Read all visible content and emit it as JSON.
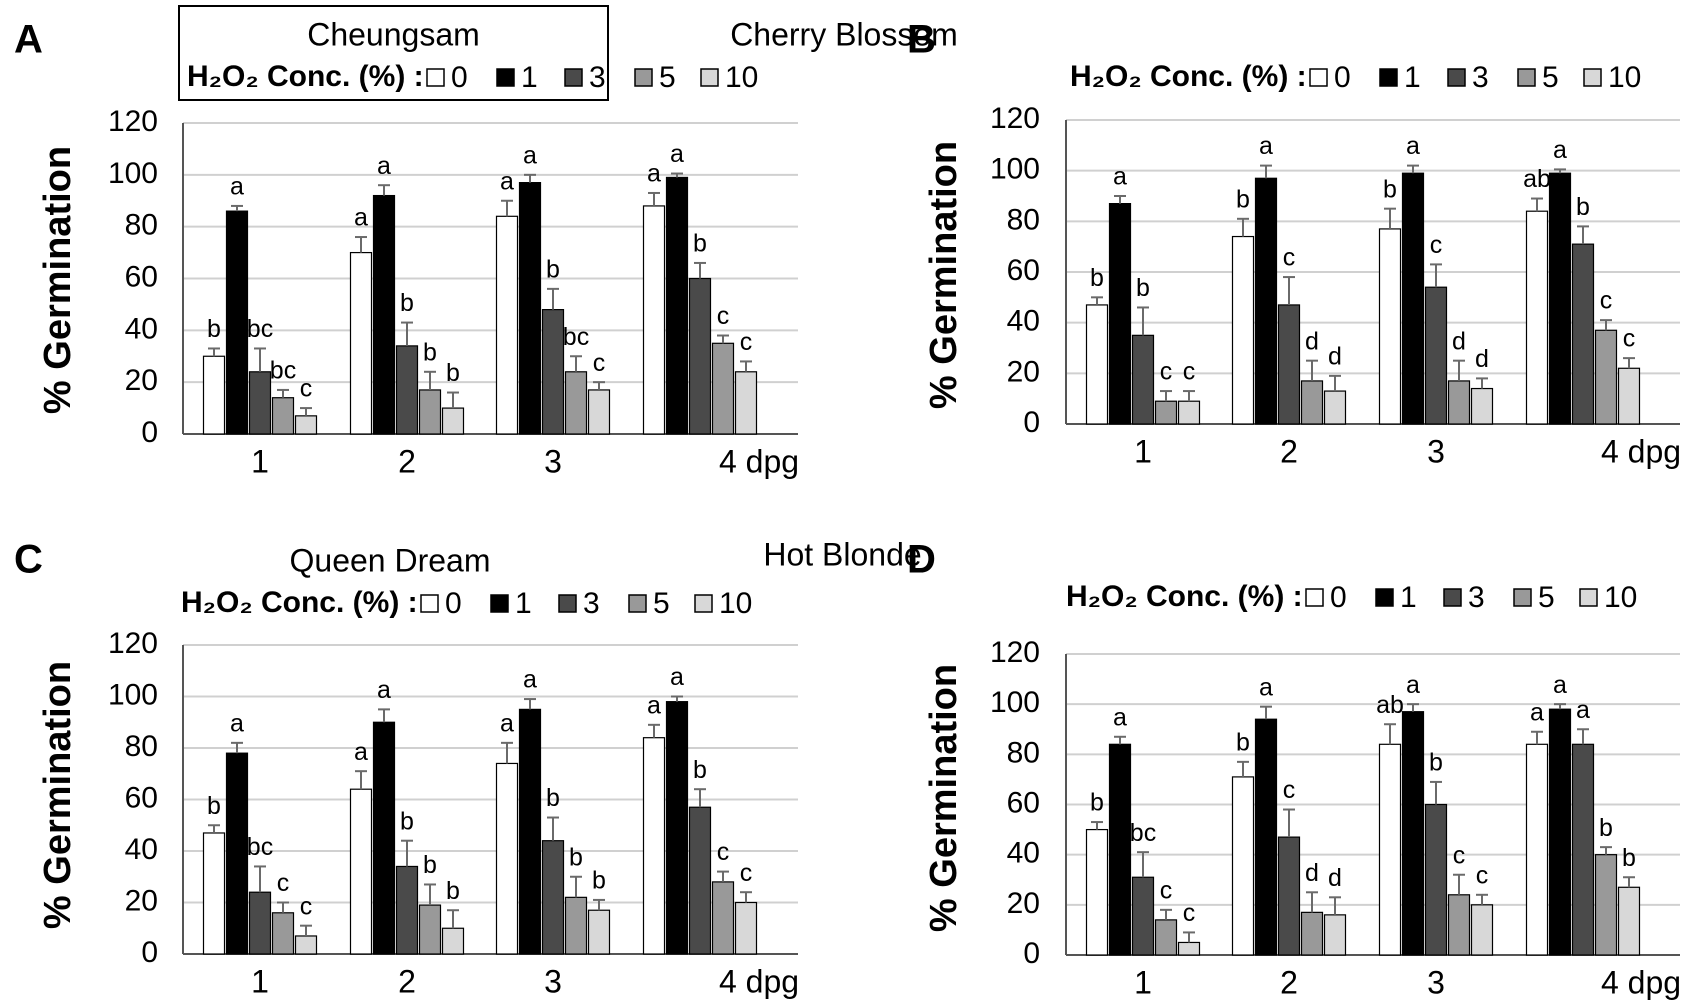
{
  "colors": {
    "0": "#ffffff",
    "1": "#000000",
    "3": "#4a4a4a",
    "5": "#999999",
    "10": "#d8d8d8",
    "gridline": "#d0d0d0",
    "errorbar": "#6a6a6a"
  },
  "chart_data": [
    {
      "panel": "A",
      "type": "bar",
      "title": "Cheungsam",
      "legend_title": "H₂O₂ Conc. (%) :",
      "legend": [
        "0",
        "1",
        "3",
        "5",
        "10"
      ],
      "categories": [
        "1",
        "2",
        "3",
        "4 dpg"
      ],
      "ylabel": "% Germination",
      "ylim": [
        0,
        120
      ],
      "yticks": [
        "0",
        "20",
        "40",
        "60",
        "80",
        "100",
        "120"
      ],
      "grid": true,
      "series": [
        {
          "name": "0",
          "values": [
            30,
            70,
            84,
            88
          ],
          "errors": [
            3,
            6,
            6,
            5
          ],
          "labels": [
            "b",
            "a",
            "a",
            "a"
          ]
        },
        {
          "name": "1",
          "values": [
            86,
            92,
            97,
            99
          ],
          "errors": [
            2,
            4,
            3,
            1.5
          ],
          "labels": [
            "a",
            "a",
            "a",
            "a"
          ]
        },
        {
          "name": "3",
          "values": [
            24,
            34,
            48,
            60
          ],
          "errors": [
            9,
            9,
            8,
            6
          ],
          "labels": [
            "bc",
            "b",
            "b",
            "b"
          ]
        },
        {
          "name": "5",
          "values": [
            14,
            17,
            24,
            35
          ],
          "errors": [
            3,
            7,
            6,
            3
          ],
          "labels": [
            "bc",
            "b",
            "bc",
            "c"
          ]
        },
        {
          "name": "10",
          "values": [
            7,
            10,
            17,
            24
          ],
          "errors": [
            3,
            6,
            3,
            4
          ],
          "labels": [
            "c",
            "b",
            "c",
            "c"
          ]
        }
      ]
    },
    {
      "panel": "B",
      "type": "bar",
      "title": "Cherry Blossom",
      "legend_title": "H₂O₂ Conc. (%) :",
      "legend": [
        "0",
        "1",
        "3",
        "5",
        "10"
      ],
      "categories": [
        "1",
        "2",
        "3",
        "4 dpg"
      ],
      "ylabel": "% Germination",
      "ylim": [
        0,
        120
      ],
      "yticks": [
        "0",
        "20",
        "40",
        "60",
        "80",
        "100",
        "120"
      ],
      "grid": true,
      "series": [
        {
          "name": "0",
          "values": [
            47,
            74,
            77,
            84
          ],
          "errors": [
            3,
            7,
            8,
            5
          ],
          "labels": [
            "b",
            "b",
            "b",
            "ab"
          ]
        },
        {
          "name": "1",
          "values": [
            87,
            97,
            99,
            99
          ],
          "errors": [
            3,
            5,
            3,
            1.5
          ],
          "labels": [
            "a",
            "a",
            "a",
            "a"
          ]
        },
        {
          "name": "3",
          "values": [
            35,
            47,
            54,
            71
          ],
          "errors": [
            11,
            11,
            9,
            7
          ],
          "labels": [
            "b",
            "c",
            "c",
            "b"
          ]
        },
        {
          "name": "5",
          "values": [
            9,
            17,
            17,
            37
          ],
          "errors": [
            4,
            8,
            8,
            4
          ],
          "labels": [
            "c",
            "d",
            "d",
            "c"
          ]
        },
        {
          "name": "10",
          "values": [
            9,
            13,
            14,
            22
          ],
          "errors": [
            4,
            6,
            4,
            4
          ],
          "labels": [
            "c",
            "d",
            "d",
            "c"
          ]
        }
      ]
    },
    {
      "panel": "C",
      "type": "bar",
      "title": "Queen Dream",
      "legend_title": "H₂O₂ Conc. (%) :",
      "legend": [
        "0",
        "1",
        "3",
        "5",
        "10"
      ],
      "categories": [
        "1",
        "2",
        "3",
        "4 dpg"
      ],
      "ylabel": "% Germination",
      "ylim": [
        0,
        120
      ],
      "yticks": [
        "0",
        "20",
        "40",
        "60",
        "80",
        "100",
        "120"
      ],
      "grid": true,
      "series": [
        {
          "name": "0",
          "values": [
            47,
            64,
            74,
            84
          ],
          "errors": [
            3,
            7,
            8,
            5
          ],
          "labels": [
            "b",
            "a",
            "a",
            "a"
          ]
        },
        {
          "name": "1",
          "values": [
            78,
            90,
            95,
            98
          ],
          "errors": [
            4,
            5,
            4,
            2
          ],
          "labels": [
            "a",
            "a",
            "a",
            "a"
          ]
        },
        {
          "name": "3",
          "values": [
            24,
            34,
            44,
            57
          ],
          "errors": [
            10,
            10,
            9,
            7
          ],
          "labels": [
            "bc",
            "b",
            "b",
            "b"
          ]
        },
        {
          "name": "5",
          "values": [
            16,
            19,
            22,
            28
          ],
          "errors": [
            4,
            8,
            8,
            4
          ],
          "labels": [
            "c",
            "b",
            "b",
            "c"
          ]
        },
        {
          "name": "10",
          "values": [
            7,
            10,
            17,
            20
          ],
          "errors": [
            4,
            7,
            4,
            4
          ],
          "labels": [
            "c",
            "b",
            "b",
            "c"
          ]
        }
      ]
    },
    {
      "panel": "D",
      "type": "bar",
      "title": "Hot Blonde",
      "legend_title": "H₂O₂ Conc. (%) :",
      "legend": [
        "0",
        "1",
        "3",
        "5",
        "10"
      ],
      "categories": [
        "1",
        "2",
        "3",
        "4 dpg"
      ],
      "ylabel": "% Germination",
      "ylim": [
        0,
        120
      ],
      "yticks": [
        "0",
        "20",
        "40",
        "60",
        "80",
        "100",
        "120"
      ],
      "grid": true,
      "series": [
        {
          "name": "0",
          "values": [
            50,
            71,
            84,
            84
          ],
          "errors": [
            3,
            6,
            8,
            5
          ],
          "labels": [
            "b",
            "b",
            "ab",
            "a"
          ]
        },
        {
          "name": "1",
          "values": [
            84,
            94,
            97,
            98
          ],
          "errors": [
            3,
            5,
            3,
            2
          ],
          "labels": [
            "a",
            "a",
            "a",
            "a"
          ]
        },
        {
          "name": "3",
          "values": [
            31,
            47,
            60,
            84
          ],
          "errors": [
            10,
            11,
            9,
            6
          ],
          "labels": [
            "bc",
            "c",
            "b",
            "a"
          ]
        },
        {
          "name": "5",
          "values": [
            14,
            17,
            24,
            40
          ],
          "errors": [
            4,
            8,
            8,
            3
          ],
          "labels": [
            "c",
            "d",
            "c",
            "b"
          ]
        },
        {
          "name": "10",
          "values": [
            5,
            16,
            20,
            27
          ],
          "errors": [
            4,
            7,
            4,
            4
          ],
          "labels": [
            "c",
            "d",
            "c",
            "b"
          ]
        }
      ]
    }
  ]
}
